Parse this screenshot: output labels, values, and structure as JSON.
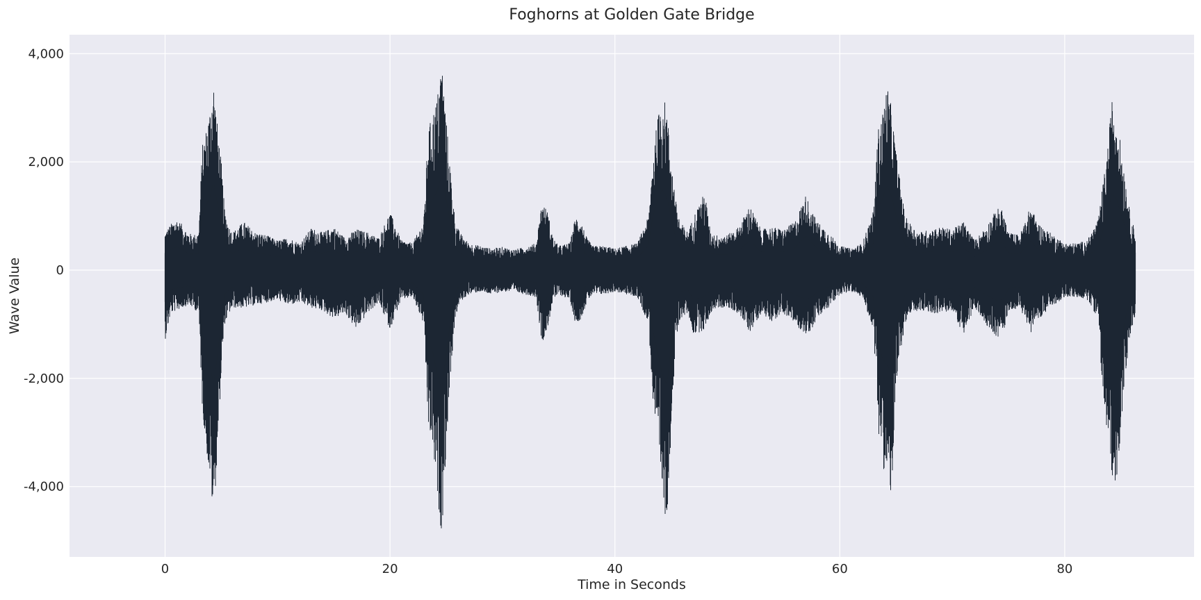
{
  "chart_data": {
    "type": "line",
    "title": "Foghorns at Golden Gate Bridge",
    "xlabel": "Time in Seconds",
    "ylabel": "Wave Value",
    "xlim": [
      -8.5,
      91.5
    ],
    "ylim": [
      -5300,
      4350
    ],
    "x_ticks": [
      0,
      20,
      40,
      60,
      80
    ],
    "y_ticks": [
      4000,
      2000,
      0,
      -2000,
      -4000
    ],
    "x_tick_labels": [
      "0",
      "20",
      "40",
      "60",
      "80"
    ],
    "y_tick_labels": [
      "4,000",
      "2,000",
      "0",
      "-2,000",
      "-4,000"
    ],
    "grid": true,
    "background_color": "#eaeaf2",
    "grid_color": "#ffffff",
    "line_color": "#1c2633",
    "series": [
      {
        "x": [
          0,
          0.5,
          1,
          1.5,
          2,
          2.5,
          3,
          3.3,
          3.6,
          4,
          4.3,
          4.6,
          5,
          5.3,
          5.7,
          6,
          7,
          8,
          9,
          10,
          11,
          12,
          13,
          14,
          15,
          16,
          17,
          18,
          19,
          20,
          21,
          22,
          23,
          23.4,
          23.8,
          24.2,
          24.6,
          25,
          25.4,
          25.8,
          26.2,
          27,
          28,
          29,
          30,
          31,
          32,
          33,
          33.5,
          34,
          34.5,
          35,
          36,
          36.5,
          37,
          37.5,
          38,
          39,
          40,
          41,
          42,
          43,
          43.4,
          43.8,
          44.2,
          44.6,
          45,
          45.4,
          45.8,
          46.5,
          47,
          48,
          48.5,
          49,
          50,
          51,
          52,
          53,
          54,
          55,
          56,
          57,
          57.5,
          58,
          59,
          60,
          61,
          62,
          63,
          63.4,
          63.8,
          64.2,
          64.6,
          65,
          65.4,
          65.8,
          66.5,
          67,
          68,
          69,
          70,
          71,
          72,
          73,
          74,
          74.5,
          75,
          76,
          77,
          77.5,
          78,
          79,
          80,
          81,
          82,
          83,
          83.4,
          83.8,
          84.2,
          84.6,
          85,
          85.4,
          85.8,
          86.3
        ],
        "y_max": [
          700,
          850,
          950,
          850,
          700,
          650,
          700,
          2300,
          2550,
          3000,
          3550,
          2800,
          2000,
          1100,
          800,
          700,
          900,
          700,
          650,
          550,
          600,
          500,
          780,
          700,
          800,
          600,
          760,
          700,
          600,
          1080,
          550,
          500,
          900,
          2600,
          2900,
          3200,
          3900,
          2800,
          1800,
          900,
          700,
          500,
          450,
          400,
          430,
          380,
          430,
          500,
          1250,
          1100,
          600,
          450,
          500,
          1000,
          900,
          600,
          450,
          450,
          400,
          450,
          500,
          1000,
          2200,
          2800,
          3300,
          3000,
          2100,
          1300,
          900,
          700,
          1000,
          1450,
          700,
          650,
          650,
          800,
          1200,
          750,
          800,
          750,
          900,
          1400,
          1100,
          900,
          700,
          450,
          400,
          500,
          1100,
          2600,
          2900,
          3450,
          3000,
          2200,
          1600,
          1000,
          800,
          700,
          750,
          800,
          750,
          900,
          550,
          800,
          1150,
          1100,
          700,
          650,
          1200,
          900,
          800,
          650,
          500,
          500,
          550,
          950,
          1600,
          2200,
          3150,
          2900,
          2300,
          1700,
          1050,
          700
        ],
        "y_min": [
          -1300,
          -800,
          -750,
          -700,
          -650,
          -700,
          -800,
          -2500,
          -3200,
          -3900,
          -4600,
          -3600,
          -1900,
          -1000,
          -800,
          -700,
          -700,
          -650,
          -600,
          -550,
          -650,
          -600,
          -700,
          -750,
          -900,
          -800,
          -1100,
          -800,
          -600,
          -1100,
          -550,
          -500,
          -1000,
          -2900,
          -3300,
          -4200,
          -4900,
          -3300,
          -1900,
          -900,
          -600,
          -450,
          -400,
          -450,
          -400,
          -400,
          -450,
          -500,
          -1350,
          -1100,
          -550,
          -450,
          -550,
          -1000,
          -900,
          -600,
          -450,
          -450,
          -400,
          -450,
          -500,
          -1000,
          -2500,
          -3300,
          -4200,
          -4700,
          -3000,
          -1400,
          -900,
          -800,
          -1200,
          -1100,
          -800,
          -700,
          -700,
          -800,
          -1150,
          -800,
          -950,
          -800,
          -1000,
          -1200,
          -1100,
          -900,
          -700,
          -450,
          -400,
          -500,
          -1100,
          -2900,
          -3600,
          -3900,
          -4200,
          -2300,
          -1500,
          -1000,
          -800,
          -750,
          -800,
          -800,
          -750,
          -1200,
          -700,
          -1000,
          -1250,
          -1200,
          -750,
          -700,
          -1150,
          -900,
          -850,
          -650,
          -500,
          -500,
          -550,
          -900,
          -2400,
          -3100,
          -3800,
          -4000,
          -2900,
          -1900,
          -1300,
          -800
        ]
      }
    ]
  }
}
